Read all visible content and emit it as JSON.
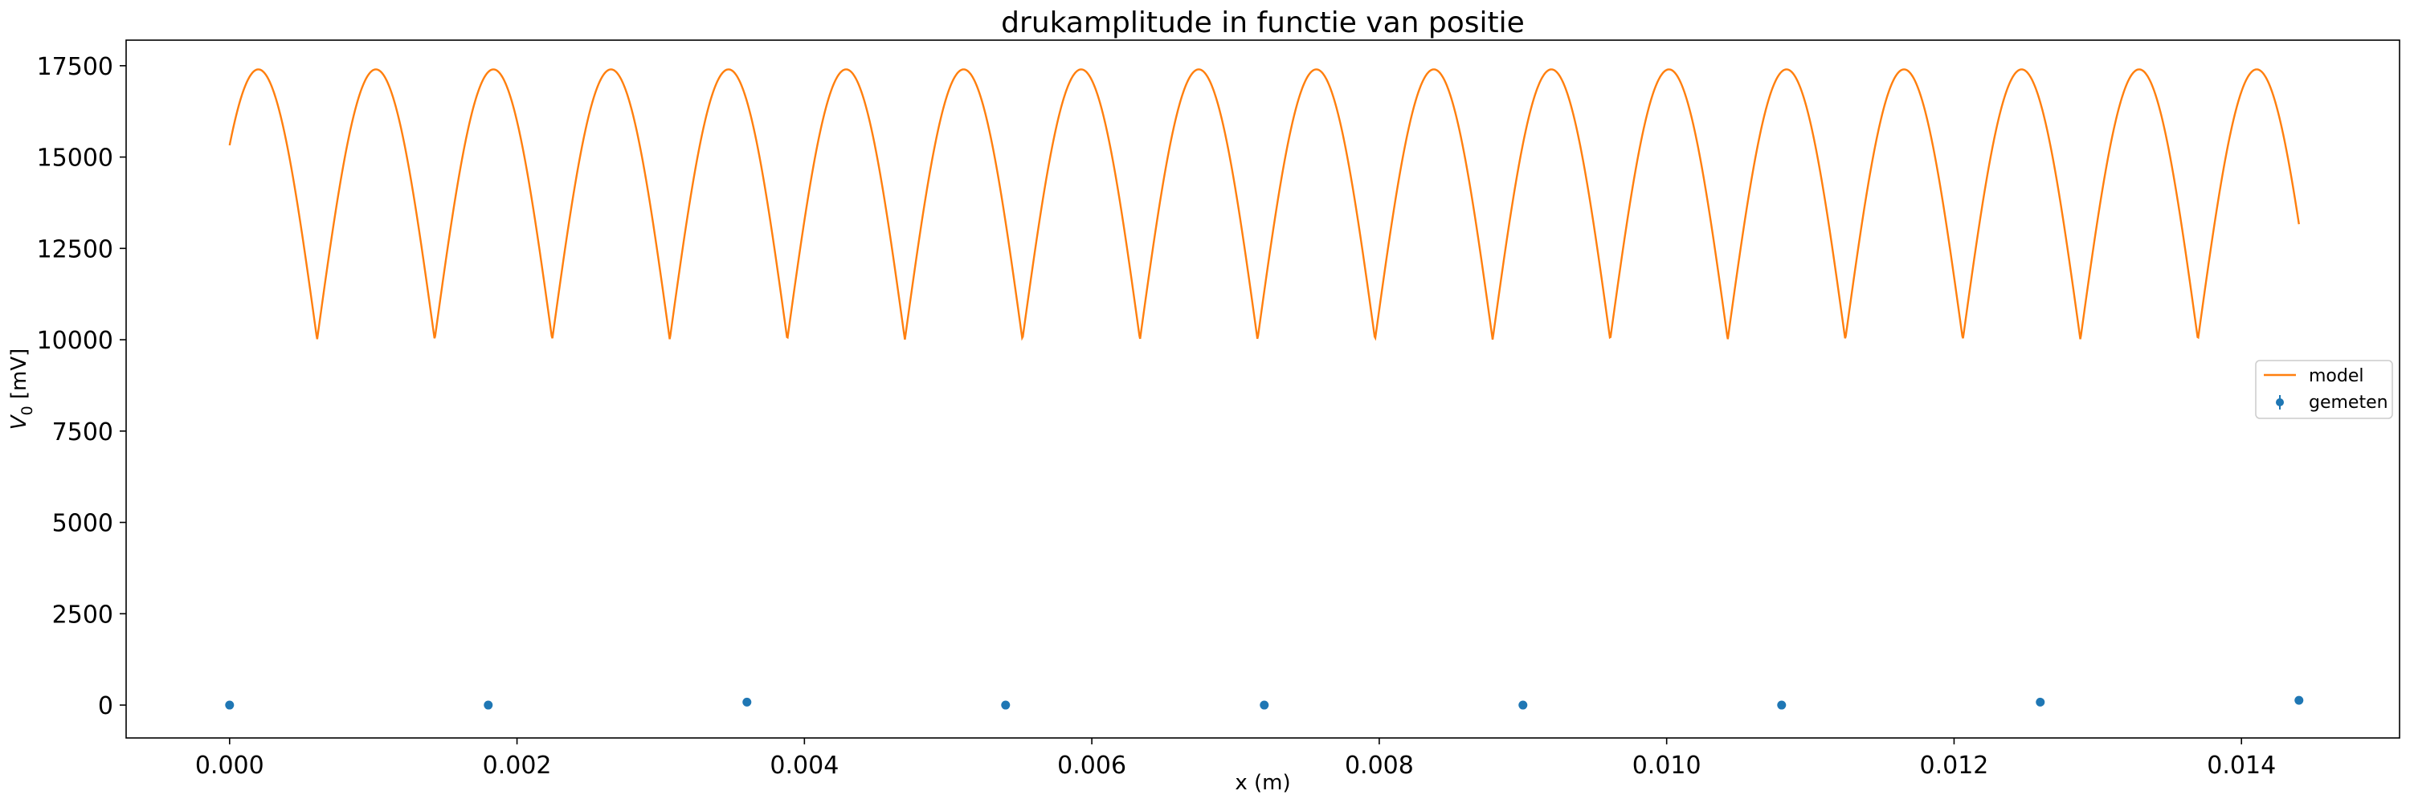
{
  "chart_data": {
    "type": "line",
    "title": "drukamplitude in functie van positie",
    "xlabel": "x (m)",
    "ylabel_main": "V",
    "ylabel_sub": "0",
    "ylabel_unit": " [mV]",
    "xlim": [
      -0.00072,
      0.0151
    ],
    "ylim": [
      -900,
      18200
    ],
    "xticks": [
      0.0,
      0.002,
      0.004,
      0.006,
      0.008,
      0.01,
      0.012,
      0.014
    ],
    "xtick_labels": [
      "0.000",
      "0.002",
      "0.004",
      "0.006",
      "0.008",
      "0.010",
      "0.012",
      "0.014"
    ],
    "yticks": [
      0,
      2500,
      5000,
      7500,
      10000,
      12500,
      15000,
      17500
    ],
    "ytick_labels": [
      "0",
      "2500",
      "5000",
      "7500",
      "10000",
      "12500",
      "15000",
      "17500"
    ],
    "grid": false,
    "legend_position": "center-right",
    "series": [
      {
        "name": "model",
        "kind": "line",
        "color": "#ff7f0e",
        "model": {
          "x_start": 0.0,
          "x_end": 0.0144,
          "amplitude_max": 17400,
          "amplitude_min": 10000,
          "half_wavelength": 0.000818,
          "first_max_x": 0.0002
        }
      },
      {
        "name": "gemeten",
        "kind": "errorbar",
        "color": "#1f77b4",
        "x": [
          0.0,
          0.0018,
          0.0036,
          0.0054,
          0.0072,
          0.009,
          0.0108,
          0.0126,
          0.0144
        ],
        "y": [
          0,
          0,
          80,
          0,
          0,
          0,
          0,
          80,
          130
        ]
      }
    ]
  }
}
